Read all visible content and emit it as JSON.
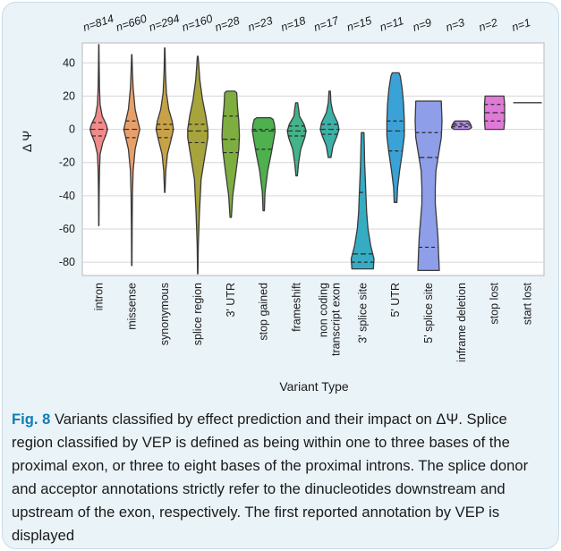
{
  "chart_data": {
    "type": "violin",
    "xlabel": "Variant Type",
    "ylabel": "Δ Ψ",
    "ylim": [
      -88,
      52
    ],
    "yticks": [
      40,
      20,
      0,
      -20,
      -40,
      -60,
      -80
    ],
    "grid": true,
    "inner": "quartile",
    "categories": [
      {
        "label": "intron",
        "n_label": "n=814",
        "color": "#f28a8a",
        "min": -58,
        "max": 51,
        "q1": -4,
        "median": 0,
        "q3": 4,
        "density": [
          [
            -58,
            0.2
          ],
          [
            -40,
            0.5
          ],
          [
            -25,
            1
          ],
          [
            -15,
            2
          ],
          [
            -8,
            6
          ],
          [
            -3,
            11
          ],
          [
            0,
            13
          ],
          [
            3,
            11
          ],
          [
            8,
            5
          ],
          [
            15,
            2
          ],
          [
            25,
            1
          ],
          [
            40,
            0.5
          ],
          [
            51,
            0.2
          ]
        ]
      },
      {
        "label": "missense",
        "n_label": "n=660",
        "color": "#e8a06b",
        "min": -82,
        "max": 45,
        "q1": -5,
        "median": 0,
        "q3": 5,
        "density": [
          [
            -82,
            0.3
          ],
          [
            -60,
            0.5
          ],
          [
            -40,
            1
          ],
          [
            -25,
            2
          ],
          [
            -12,
            5
          ],
          [
            -5,
            9
          ],
          [
            0,
            12
          ],
          [
            5,
            9
          ],
          [
            12,
            5
          ],
          [
            25,
            2
          ],
          [
            35,
            1
          ],
          [
            45,
            0.3
          ]
        ]
      },
      {
        "label": "synonymous",
        "n_label": "n=294",
        "color": "#c8a246",
        "min": -38,
        "max": 49,
        "q1": -5,
        "median": 0,
        "q3": 3,
        "density": [
          [
            -38,
            0.3
          ],
          [
            -25,
            1.5
          ],
          [
            -15,
            4
          ],
          [
            -7,
            9
          ],
          [
            0,
            13
          ],
          [
            5,
            11
          ],
          [
            12,
            6
          ],
          [
            22,
            2.5
          ],
          [
            35,
            1
          ],
          [
            49,
            0.3
          ]
        ]
      },
      {
        "label": "splice region",
        "n_label": "n=160",
        "color": "#a7a43c",
        "min": -87,
        "max": 44,
        "q1": -8,
        "median": -1,
        "q3": 3,
        "density": [
          [
            -87,
            0.3
          ],
          [
            -70,
            0.8
          ],
          [
            -50,
            2.5
          ],
          [
            -30,
            5
          ],
          [
            -15,
            11
          ],
          [
            -5,
            15
          ],
          [
            0,
            15
          ],
          [
            8,
            12
          ],
          [
            18,
            7
          ],
          [
            30,
            3
          ],
          [
            44,
            0.5
          ]
        ]
      },
      {
        "label": "3' UTR",
        "n_label": "n=28",
        "color": "#7fae40",
        "min": -53,
        "max": 23,
        "q1": -14,
        "median": -6,
        "q3": 8,
        "density": [
          [
            -53,
            1
          ],
          [
            -40,
            3
          ],
          [
            -25,
            8
          ],
          [
            -12,
            12
          ],
          [
            -4,
            13
          ],
          [
            5,
            12
          ],
          [
            14,
            10
          ],
          [
            22,
            9
          ],
          [
            23,
            6
          ]
        ]
      },
      {
        "label": "stop gained",
        "n_label": "n=23",
        "color": "#4fb04e",
        "min": -49,
        "max": 7,
        "q1": -12,
        "median": -1,
        "q3": 0,
        "density": [
          [
            -49,
            1
          ],
          [
            -38,
            2
          ],
          [
            -25,
            6
          ],
          [
            -15,
            11
          ],
          [
            -6,
            15
          ],
          [
            -1,
            17
          ],
          [
            3,
            16
          ],
          [
            6,
            14
          ],
          [
            7,
            10
          ]
        ]
      },
      {
        "label": "frameshift",
        "n_label": "n=18",
        "color": "#43b38a",
        "min": -28,
        "max": 16,
        "q1": -4,
        "median": -1,
        "q3": 2,
        "density": [
          [
            -28,
            1
          ],
          [
            -20,
            3
          ],
          [
            -12,
            6
          ],
          [
            -5,
            12
          ],
          [
            -1,
            14
          ],
          [
            3,
            11
          ],
          [
            8,
            4
          ],
          [
            12,
            3
          ],
          [
            16,
            1.5
          ]
        ]
      },
      {
        "label": "non coding\ntranscript exon",
        "n_label": "n=17",
        "color": "#3cb1a7",
        "min": -17,
        "max": 23,
        "q1": -3,
        "median": 0,
        "q3": 3,
        "density": [
          [
            -17,
            2
          ],
          [
            -10,
            5
          ],
          [
            -4,
            11
          ],
          [
            0,
            14
          ],
          [
            4,
            12
          ],
          [
            10,
            5
          ],
          [
            16,
            2
          ],
          [
            23,
            1
          ]
        ]
      },
      {
        "label": "3' splice site",
        "n_label": "n=15",
        "color": "#36acc3",
        "min": -84,
        "max": -2,
        "q1": -80,
        "median": -75,
        "q3": -38,
        "density": [
          [
            -84,
            16
          ],
          [
            -78,
            17
          ],
          [
            -70,
            12
          ],
          [
            -60,
            8
          ],
          [
            -50,
            6
          ],
          [
            -40,
            5
          ],
          [
            -30,
            4
          ],
          [
            -20,
            3
          ],
          [
            -10,
            2.5
          ],
          [
            -2,
            2
          ]
        ]
      },
      {
        "label": "5' UTR",
        "n_label": "n=11",
        "color": "#3aa2d6",
        "min": -44,
        "max": 34,
        "q1": -13,
        "median": -1,
        "q3": 5,
        "density": [
          [
            -44,
            2
          ],
          [
            -35,
            3
          ],
          [
            -25,
            6
          ],
          [
            -14,
            10
          ],
          [
            -4,
            13
          ],
          [
            5,
            13
          ],
          [
            15,
            12
          ],
          [
            24,
            10
          ],
          [
            32,
            7
          ],
          [
            34,
            5
          ]
        ]
      },
      {
        "label": "5' splice site",
        "n_label": "n=9",
        "color": "#8e9ee8",
        "min": -85,
        "max": 17,
        "q1": -71,
        "median": -17,
        "q3": -2,
        "density": [
          [
            -85,
            16
          ],
          [
            -75,
            15
          ],
          [
            -65,
            14
          ],
          [
            -55,
            12
          ],
          [
            -45,
            10
          ],
          [
            -35,
            10
          ],
          [
            -25,
            11
          ],
          [
            -15,
            15
          ],
          [
            -5,
            19
          ],
          [
            5,
            20
          ],
          [
            17,
            19
          ]
        ]
      },
      {
        "label": "inframe deletion",
        "n_label": "n=3",
        "color": "#b48be8",
        "min": 0,
        "max": 5,
        "q1": 1.5,
        "median": 2.5,
        "q3": 3.5,
        "density": [
          [
            0,
            11
          ],
          [
            1,
            15
          ],
          [
            2.5,
            14
          ],
          [
            4,
            12
          ],
          [
            5,
            10
          ]
        ]
      },
      {
        "label": "stop lost",
        "n_label": "n=2",
        "color": "#e07ad8",
        "min": 0,
        "max": 20,
        "q1": 5,
        "median": 10,
        "q3": 15,
        "density": [
          [
            0,
            14
          ],
          [
            5,
            15
          ],
          [
            10,
            15
          ],
          [
            15,
            15
          ],
          [
            20,
            14
          ]
        ]
      },
      {
        "label": "start lost",
        "n_label": "n=1",
        "color": "#f07fb8",
        "min": 16,
        "max": 16,
        "q1": 16,
        "median": 16,
        "q3": 16,
        "density": []
      }
    ]
  },
  "caption": {
    "label": "Fig. 8",
    "text": " Variants classified by effect prediction and their impact on ΔΨ. Splice region classified by VEP is defined as being within one to three bases of the proximal exon, or three to eight bases of the proximal introns. The splice donor and acceptor annotations strictly refer to the dinucleotides downstream and upstream of the exon, respectively. The first reported annotation by VEP is displayed"
  }
}
